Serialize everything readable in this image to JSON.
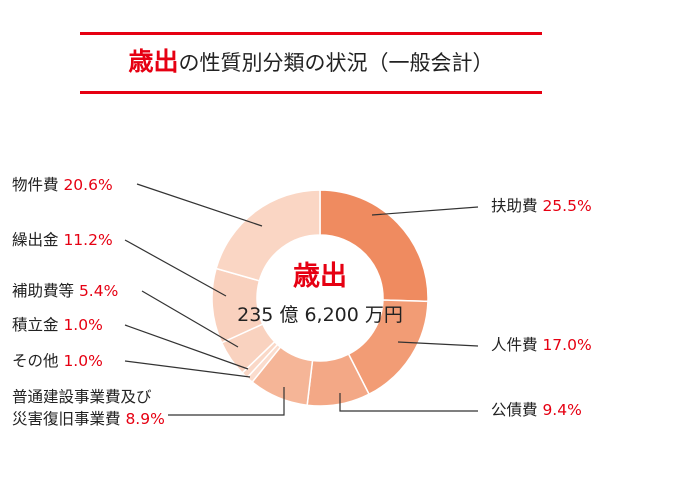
{
  "title": {
    "accent": "歳出",
    "rest": "の性質別分類の状況（一般会計）"
  },
  "center": {
    "title": "歳出",
    "total": "235 億 6,200 万円"
  },
  "colors": {
    "accent": "#e60012",
    "line": "#333333"
  },
  "chart_data": {
    "type": "pie",
    "title": "歳出の性質別分類の状況（一般会計）",
    "total_label": "235 億 6,200 万円",
    "slices": [
      {
        "name": "扶助費",
        "value": 25.5,
        "value_label": "25.5%",
        "color": "#ef8b60"
      },
      {
        "name": "人件費",
        "value": 17.0,
        "value_label": "17.0%",
        "color": "#f29c75"
      },
      {
        "name": "公債費",
        "value": 9.4,
        "value_label": "9.4%",
        "color": "#f3a886"
      },
      {
        "name": "普通建設事業費及び災害復旧事業費",
        "lines": [
          "普通建設事業費及び",
          "災害復旧事業費"
        ],
        "value": 8.9,
        "value_label": "8.9%",
        "color": "#f5b597"
      },
      {
        "name": "その他",
        "value": 1.0,
        "value_label": "1.0%",
        "color": "#fbdccd"
      },
      {
        "name": "積立金",
        "value": 1.0,
        "value_label": "1.0%",
        "color": "#fad8c7"
      },
      {
        "name": "補助費等",
        "value": 5.4,
        "value_label": "5.4%",
        "color": "#f9d2bf"
      },
      {
        "name": "繰出金",
        "value": 11.2,
        "value_label": "11.2%",
        "color": "#f9d1be"
      },
      {
        "name": "物件費",
        "value": 20.6,
        "value_label": "20.6%",
        "color": "#fad6c4"
      }
    ]
  }
}
